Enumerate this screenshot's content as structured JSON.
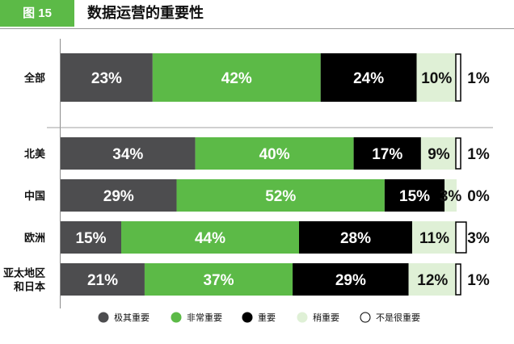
{
  "header": {
    "figure_label": "图 15",
    "title": "数据运营的重要性"
  },
  "colors": {
    "extremely": "#4d4d4f",
    "very": "#5cba47",
    "important": "#000000",
    "somewhat": "#dff0d6",
    "not": "#ffffff",
    "axis": "#8c8c8c"
  },
  "chart_data": {
    "type": "bar",
    "orientation": "horizontal",
    "stacked": true,
    "percent_total": true,
    "categories": [
      "全部",
      "北美",
      "中国",
      "欧洲",
      "亚太地区\n和日本"
    ],
    "series": [
      {
        "name": "极其重要",
        "values": [
          23,
          34,
          29,
          15,
          21
        ],
        "color": "#4d4d4f"
      },
      {
        "name": "非常重要",
        "values": [
          42,
          40,
          52,
          44,
          37
        ],
        "color": "#5cba47"
      },
      {
        "name": "重要",
        "values": [
          24,
          17,
          15,
          28,
          29
        ],
        "color": "#000000"
      },
      {
        "name": "稍重要",
        "values": [
          10,
          9,
          3,
          11,
          12
        ],
        "color": "#dff0d6"
      },
      {
        "name": "不是很重要",
        "values": [
          1,
          1,
          0,
          3,
          1
        ],
        "color": "#ffffff"
      }
    ],
    "legend_position": "bottom",
    "grid": false
  }
}
